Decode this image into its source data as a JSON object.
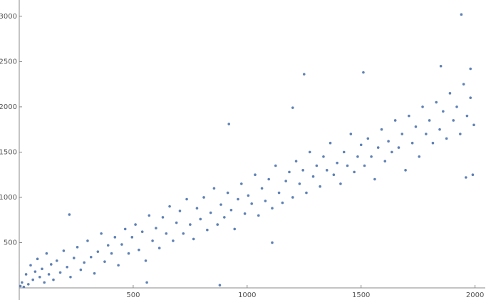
{
  "chart_data": {
    "type": "scatter",
    "color": "#5e81b5",
    "xlim": [
      0,
      2045
    ],
    "ylim": [
      0,
      3180
    ],
    "xticks": [
      500,
      1000,
      1500,
      2000
    ],
    "yticks": [
      500,
      1000,
      1500,
      2000,
      2500,
      3000
    ],
    "x": [
      5,
      12,
      20,
      30,
      40,
      50,
      60,
      70,
      80,
      90,
      100,
      110,
      120,
      130,
      140,
      150,
      165,
      180,
      195,
      210,
      225,
      240,
      255,
      270,
      285,
      300,
      315,
      330,
      345,
      360,
      375,
      390,
      405,
      420,
      435,
      450,
      465,
      480,
      495,
      510,
      525,
      540,
      555,
      570,
      585,
      600,
      615,
      630,
      645,
      660,
      675,
      690,
      705,
      720,
      735,
      750,
      765,
      780,
      795,
      810,
      825,
      840,
      855,
      870,
      885,
      900,
      915,
      930,
      945,
      960,
      975,
      990,
      1005,
      1020,
      1035,
      1050,
      1065,
      1080,
      1095,
      1110,
      1125,
      1140,
      1155,
      1170,
      1185,
      1200,
      1215,
      1230,
      1245,
      1260,
      1275,
      1290,
      1305,
      1320,
      1335,
      1350,
      1365,
      1380,
      1395,
      1410,
      1425,
      1440,
      1455,
      1470,
      1485,
      1500,
      1515,
      1530,
      1545,
      1560,
      1575,
      1590,
      1605,
      1620,
      1635,
      1650,
      1665,
      1680,
      1695,
      1710,
      1725,
      1740,
      1755,
      1770,
      1785,
      1800,
      1815,
      1830,
      1845,
      1860,
      1875,
      1890,
      1905,
      1920,
      1935,
      1950,
      1965,
      1980,
      1995,
      1940,
      1250,
      1510,
      920,
      1850,
      1980,
      560,
      880,
      1990,
      1960,
      1110,
      220,
      1200
    ],
    "values": [
      20,
      60,
      10,
      150,
      40,
      250,
      90,
      180,
      320,
      120,
      210,
      60,
      380,
      150,
      260,
      90,
      300,
      170,
      410,
      230,
      120,
      330,
      450,
      200,
      280,
      520,
      340,
      160,
      400,
      600,
      290,
      470,
      380,
      560,
      250,
      480,
      650,
      380,
      560,
      700,
      420,
      620,
      300,
      800,
      520,
      660,
      440,
      780,
      600,
      900,
      520,
      720,
      850,
      600,
      980,
      700,
      540,
      880,
      760,
      1000,
      640,
      830,
      1100,
      700,
      920,
      780,
      1050,
      860,
      650,
      980,
      1150,
      820,
      1020,
      930,
      1250,
      800,
      1100,
      960,
      1200,
      880,
      1350,
      1050,
      940,
      1180,
      1280,
      1000,
      1400,
      1150,
      1300,
      1050,
      1500,
      1230,
      1350,
      1120,
      1450,
      1300,
      1600,
      1250,
      1380,
      1150,
      1500,
      1350,
      1700,
      1280,
      1450,
      1580,
      1350,
      1650,
      1450,
      1200,
      1550,
      1750,
      1400,
      1620,
      1500,
      1850,
      1550,
      1700,
      1300,
      1900,
      1600,
      1780,
      1450,
      2000,
      1700,
      1850,
      1600,
      2050,
      1750,
      1950,
      1650,
      2150,
      1850,
      2000,
      1700,
      2250,
      1900,
      2100,
      1800,
      3020,
      2360,
      2380,
      1810,
      2450,
      2420,
      60,
      30,
      1250,
      1220,
      500,
      810,
      1990
    ]
  }
}
